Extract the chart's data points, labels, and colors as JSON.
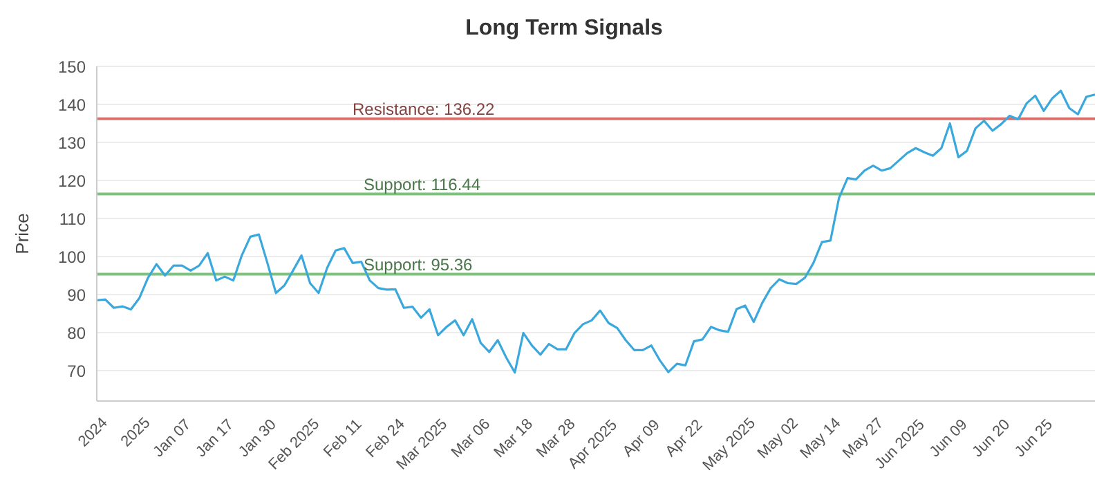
{
  "chart_data": {
    "type": "line",
    "title": "Long Term Signals",
    "ylabel": "Price",
    "categories": [
      null,
      "2024",
      null,
      null,
      null,
      null,
      "2025",
      null,
      null,
      null,
      null,
      "Jan 07",
      null,
      null,
      null,
      null,
      "Jan 17",
      null,
      null,
      null,
      null,
      "Jan 30",
      null,
      null,
      null,
      null,
      "Feb 2025",
      null,
      null,
      null,
      null,
      "Feb 11",
      null,
      null,
      null,
      null,
      "Feb 24",
      null,
      null,
      null,
      null,
      "Mar 2025",
      null,
      null,
      null,
      null,
      "Mar 06",
      null,
      null,
      null,
      null,
      "Mar 18",
      null,
      null,
      null,
      null,
      "Mar 28",
      null,
      null,
      null,
      null,
      "Apr 2025",
      null,
      null,
      null,
      null,
      "Apr 09",
      null,
      null,
      null,
      null,
      "Apr 22",
      null,
      null,
      null,
      null,
      null,
      "May 2025",
      null,
      null,
      null,
      null,
      "May 02",
      null,
      null,
      null,
      null,
      "May 14",
      null,
      null,
      null,
      null,
      "May 27",
      null,
      null,
      null,
      null,
      "Jun 2025",
      null,
      null,
      null,
      null,
      "Jun 09",
      null,
      null,
      null,
      null,
      "Jun 20",
      null,
      null,
      null,
      null,
      "Jun 25",
      null,
      null,
      null,
      null,
      null
    ],
    "series": [
      {
        "color": "#3aa8dc",
        "values": [
          88.5,
          88.7,
          86.5,
          86.9,
          86.1,
          89.1,
          94.4,
          98,
          95,
          97.6,
          97.6,
          96.3,
          97.6,
          100.9,
          93.7,
          94.7,
          93.7,
          100.3,
          105.2,
          105.8,
          98.3,
          90.4,
          92.4,
          96.3,
          100.3,
          93,
          90.4,
          97,
          101.6,
          102.2,
          98.3,
          98.6,
          93.7,
          91.7,
          91.3,
          91.4,
          86.5,
          86.8,
          83.9,
          86.1,
          79.3,
          81.5,
          83.2,
          79.3,
          83.5,
          77.3,
          74.9,
          78,
          73.4,
          69.5,
          79.9,
          76.6,
          74.2,
          77,
          75.6,
          75.6,
          79.9,
          82.2,
          83.2,
          85.8,
          82.5,
          81.2,
          78,
          75.4,
          75.4,
          76.6,
          72.7,
          69.6,
          71.8,
          71.4,
          77.7,
          78.2,
          81.5,
          80.6,
          80.2,
          86.2,
          87.1,
          82.8,
          87.8,
          91.7,
          94,
          93,
          92.8,
          94.4,
          98.3,
          103.8,
          104.2,
          115.4,
          120.6,
          120.3,
          122.6,
          123.9,
          122.6,
          123.2,
          125.2,
          127.2,
          128.5,
          127.4,
          126.5,
          128.5,
          135,
          126.1,
          127.8,
          133.7,
          135.7,
          133.1,
          134.8,
          137,
          136.1,
          140.3,
          142.3,
          138.3,
          141.6,
          143.6,
          139,
          137.4,
          142,
          142.6
        ]
      }
    ],
    "ylim": [
      62,
      150
    ],
    "yticks": [
      70,
      80,
      90,
      100,
      110,
      120,
      130,
      140,
      150
    ],
    "grid": "y",
    "legend": false,
    "marker": "none",
    "line_style": "solid",
    "ref_lines": [
      {
        "axis": "y",
        "value": 136.22,
        "label": "Resistance: 136.22",
        "color": "#d9706c"
      },
      {
        "axis": "y",
        "value": 116.44,
        "label": "Support: 116.44",
        "color": "#7cc47c"
      },
      {
        "axis": "y",
        "value": 95.36,
        "label": "Support: 95.36",
        "color": "#7cc47c"
      }
    ]
  }
}
